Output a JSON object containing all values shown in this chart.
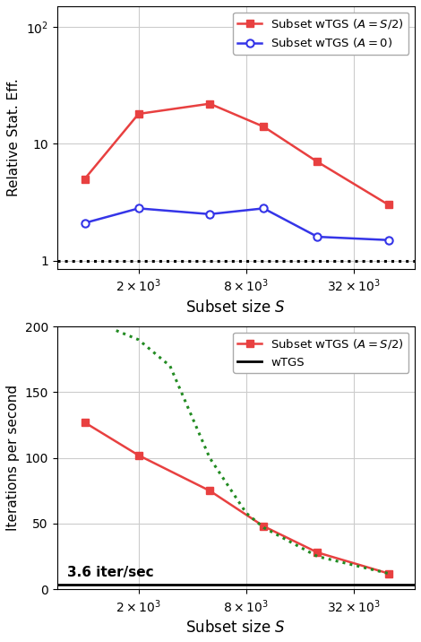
{
  "top": {
    "x_values": [
      1000,
      2000,
      5000,
      10000,
      20000,
      50000
    ],
    "red_y": [
      5.0,
      18.0,
      22.0,
      14.0,
      7.0,
      3.0
    ],
    "blue_y": [
      2.1,
      2.8,
      2.5,
      2.8,
      1.6,
      1.5
    ],
    "red_label": "Subset wTGS ($A = S/2$)",
    "blue_label": "Subset wTGS ($A = 0$)",
    "ylabel": "Relative Stat. Eff.",
    "xlabel": "Subset size $S$",
    "ylim": [
      0.85,
      150
    ],
    "xlim": [
      700,
      70000
    ],
    "hline_y": 1.0,
    "xticks": [
      2000,
      8000,
      32000
    ],
    "yticks": [
      1,
      10,
      100
    ]
  },
  "bottom": {
    "x_values_red": [
      1000,
      2000,
      5000,
      10000,
      20000,
      50000
    ],
    "red_y": [
      127,
      102,
      75,
      48,
      28,
      12
    ],
    "x_values_green": [
      1500,
      2000,
      3000,
      5000,
      8000,
      10000,
      20000,
      50000
    ],
    "green_y": [
      197,
      190,
      170,
      100,
      58,
      47,
      25,
      12
    ],
    "hline_y": 3.6,
    "red_label": "Subset wTGS ($A = S/2$)",
    "black_label": "wTGS",
    "ylabel": "Iterations per second",
    "xlabel": "Subset size $S$",
    "ylim": [
      0,
      200
    ],
    "xlim": [
      700,
      70000
    ],
    "hline_label": "3.6 iter/sec",
    "xticks": [
      2000,
      8000,
      32000
    ],
    "yticks": [
      0,
      50,
      100,
      150,
      200
    ]
  },
  "red_color": "#e84040",
  "blue_color": "#3535e8",
  "green_color": "#228B22",
  "black_color": "#000000",
  "grid_color": "#cccccc",
  "fig_width": 4.7,
  "fig_height": 7.16,
  "dpi": 100
}
